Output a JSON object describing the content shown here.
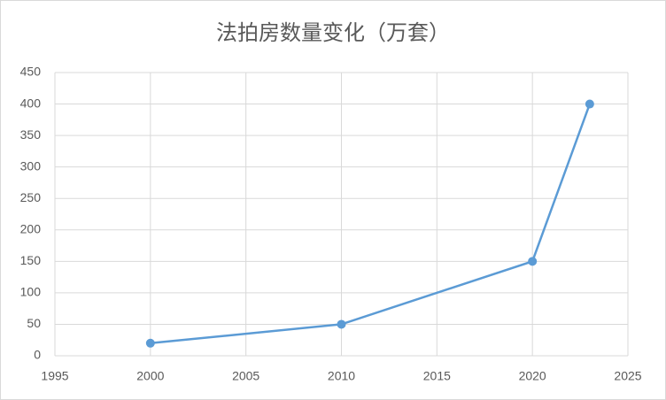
{
  "chart_data": {
    "type": "line",
    "title": "法拍房数量变化（万套）",
    "x": [
      2000,
      2010,
      2020,
      2023
    ],
    "series": [
      {
        "color": "#5b9bd5",
        "values": [
          20,
          50,
          150,
          400
        ]
      }
    ],
    "xlim": [
      1995,
      2025
    ],
    "xticks": [
      1995,
      2000,
      2005,
      2010,
      2015,
      2020,
      2025
    ],
    "ylim": [
      0,
      450
    ],
    "yticks": [
      0,
      50,
      100,
      150,
      200,
      250,
      300,
      350,
      400,
      450
    ],
    "grid": true
  }
}
